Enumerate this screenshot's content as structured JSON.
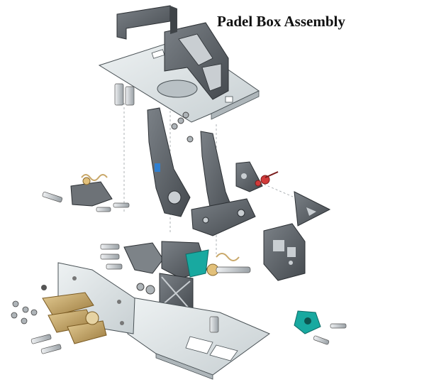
{
  "title": "Padel Box Assembly",
  "colors": {
    "plate": "#dfe6e8",
    "plate_edge": "#4a5256",
    "dark_metal": "#5b6065",
    "dark_metal_light": "#8a9095",
    "brass": "#c9a86a",
    "teal": "#18a9a0",
    "red": "#d23a3a",
    "bolt": "#c9ced2"
  },
  "components": [
    {
      "name": "top-bracket",
      "label": ""
    },
    {
      "name": "top-plate",
      "label": ""
    },
    {
      "name": "left-pedal-arm",
      "label": ""
    },
    {
      "name": "center-pedal-arm",
      "label": ""
    },
    {
      "name": "right-mount-bracket",
      "label": ""
    },
    {
      "name": "triangle-gusset",
      "label": ""
    },
    {
      "name": "pivot-block",
      "label": ""
    },
    {
      "name": "spring-assembly-left",
      "label": ""
    },
    {
      "name": "spring-assembly-center",
      "label": ""
    },
    {
      "name": "base-plate",
      "label": ""
    },
    {
      "name": "vertical-plate",
      "label": ""
    },
    {
      "name": "master-cylinders",
      "label": ""
    },
    {
      "name": "teal-sensor",
      "label": ""
    },
    {
      "name": "center-cross-brace",
      "label": ""
    }
  ]
}
